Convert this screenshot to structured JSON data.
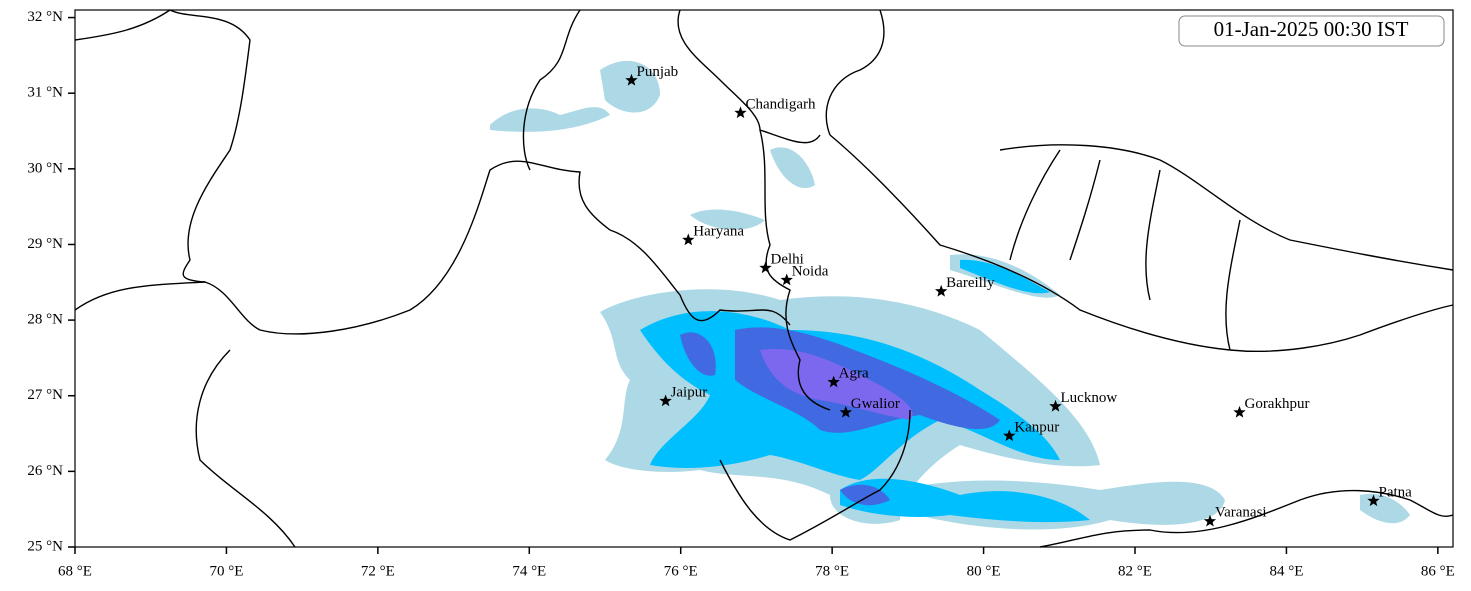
{
  "title": "01-Jan-2025 00:30 IST",
  "xlim": [
    68,
    86.2
  ],
  "ylim": [
    25,
    32.1
  ],
  "xticks": [
    {
      "value": 68,
      "label": "68 °E"
    },
    {
      "value": 70,
      "label": "70 °E"
    },
    {
      "value": 72,
      "label": "72 °E"
    },
    {
      "value": 74,
      "label": "74 °E"
    },
    {
      "value": 76,
      "label": "76 °E"
    },
    {
      "value": 78,
      "label": "78 °E"
    },
    {
      "value": 80,
      "label": "80 °E"
    },
    {
      "value": 82,
      "label": "82 °E"
    },
    {
      "value": 84,
      "label": "84 °E"
    },
    {
      "value": 86,
      "label": "86 °E"
    }
  ],
  "yticks": [
    {
      "value": 25,
      "label": "25 °N"
    },
    {
      "value": 26,
      "label": "26 °N"
    },
    {
      "value": 27,
      "label": "27 °N"
    },
    {
      "value": 28,
      "label": "28 °N"
    },
    {
      "value": 29,
      "label": "29 °N"
    },
    {
      "value": 30,
      "label": "30 °N"
    },
    {
      "value": 31,
      "label": "31 °N"
    },
    {
      "value": 32,
      "label": "32 °N"
    }
  ],
  "cities": [
    {
      "name": "Punjab",
      "lon": 75.35,
      "lat": 31.17
    },
    {
      "name": "Chandigarh",
      "lon": 76.79,
      "lat": 30.74
    },
    {
      "name": "Haryana",
      "lon": 76.1,
      "lat": 29.06
    },
    {
      "name": "Delhi",
      "lon": 77.12,
      "lat": 28.69
    },
    {
      "name": "Noida",
      "lon": 77.4,
      "lat": 28.53
    },
    {
      "name": "Bareilly",
      "lon": 79.44,
      "lat": 28.38
    },
    {
      "name": "Agra",
      "lon": 78.02,
      "lat": 27.18
    },
    {
      "name": "Jaipur",
      "lon": 75.8,
      "lat": 26.93
    },
    {
      "name": "Gwalior",
      "lon": 78.18,
      "lat": 26.78
    },
    {
      "name": "Lucknow",
      "lon": 80.95,
      "lat": 26.86
    },
    {
      "name": "Kanpur",
      "lon": 80.34,
      "lat": 26.47
    },
    {
      "name": "Gorakhpur",
      "lon": 83.38,
      "lat": 26.78
    },
    {
      "name": "Varanasi",
      "lon": 82.99,
      "lat": 25.34
    },
    {
      "name": "Patna",
      "lon": 85.15,
      "lat": 25.61
    }
  ]
}
